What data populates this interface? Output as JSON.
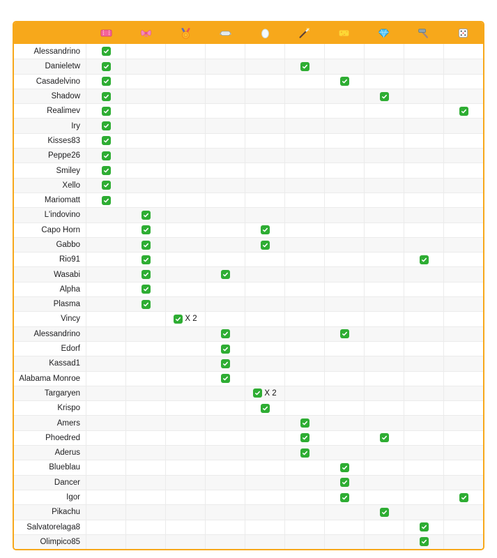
{
  "colors": {
    "header_orange": "#F7A81B",
    "border_orange": "#F7A81B",
    "check_green": "#2EAD33",
    "grid_line": "#EBEBEB",
    "row_alt": "#F7F7F7"
  },
  "chart_data": {
    "type": "table",
    "title": "",
    "check_symbol": "✅",
    "columns": [
      {
        "icon": "ticket-icon",
        "emoji": "🎟"
      },
      {
        "icon": "ribbon-icon",
        "emoji": "🎀"
      },
      {
        "icon": "medal-icon",
        "emoji": "🏅"
      },
      {
        "icon": "goggles-icon",
        "emoji": "🥽"
      },
      {
        "icon": "egg-icon",
        "emoji": "🥚"
      },
      {
        "icon": "magic-wand-icon",
        "emoji": "🪄"
      },
      {
        "icon": "sponge-icon",
        "emoji": "🧽"
      },
      {
        "icon": "gem-icon",
        "emoji": "💎"
      },
      {
        "icon": "hammer-icon",
        "emoji": "⚒️"
      },
      {
        "icon": "dice-icon",
        "emoji": "🎲"
      }
    ],
    "rows": [
      {
        "name": "Alessandrino",
        "checks": [
          0
        ]
      },
      {
        "name": "Danieletw",
        "checks": [
          0,
          5
        ]
      },
      {
        "name": "Casadelvino",
        "checks": [
          0,
          6
        ]
      },
      {
        "name": "Shadow",
        "checks": [
          0,
          7
        ]
      },
      {
        "name": "Realimev",
        "checks": [
          0,
          9
        ]
      },
      {
        "name": "Iry",
        "checks": [
          0
        ]
      },
      {
        "name": "Kisses83",
        "checks": [
          0
        ]
      },
      {
        "name": "Peppe26",
        "checks": [
          0
        ]
      },
      {
        "name": "Smiley",
        "checks": [
          0
        ]
      },
      {
        "name": "Xello",
        "checks": [
          0
        ]
      },
      {
        "name": "Mariomatt",
        "checks": [
          0
        ]
      },
      {
        "name": "L'indovino",
        "checks": [
          1
        ]
      },
      {
        "name": "Capo Horn",
        "checks": [
          1,
          4
        ]
      },
      {
        "name": "Gabbo",
        "checks": [
          1,
          4
        ]
      },
      {
        "name": "Rio91",
        "checks": [
          1,
          8
        ]
      },
      {
        "name": "Wasabi",
        "checks": [
          1,
          3
        ]
      },
      {
        "name": "Alpha",
        "checks": [
          1
        ]
      },
      {
        "name": "Plasma",
        "checks": [
          1
        ]
      },
      {
        "name": "Vincy",
        "checks": [
          2
        ],
        "multiplier": {
          "col": 2,
          "text": "X 2"
        }
      },
      {
        "name": "Alessandrino",
        "checks": [
          3,
          6
        ]
      },
      {
        "name": "Edorf",
        "checks": [
          3
        ]
      },
      {
        "name": "Kassad1",
        "checks": [
          3
        ]
      },
      {
        "name": "Alabama Monroe",
        "checks": [
          3
        ]
      },
      {
        "name": "Targaryen",
        "checks": [
          4
        ],
        "multiplier": {
          "col": 4,
          "text": "X 2"
        }
      },
      {
        "name": "Krispo",
        "checks": [
          4
        ]
      },
      {
        "name": "Amers",
        "checks": [
          5
        ]
      },
      {
        "name": "Phoedred",
        "checks": [
          5,
          7
        ]
      },
      {
        "name": "Aderus",
        "checks": [
          5
        ]
      },
      {
        "name": "Blueblau",
        "checks": [
          6
        ]
      },
      {
        "name": "Dancer",
        "checks": [
          6
        ]
      },
      {
        "name": "Igor",
        "checks": [
          6,
          9
        ]
      },
      {
        "name": "Pikachu",
        "checks": [
          7
        ]
      },
      {
        "name": "Salvatorelaga8",
        "checks": [
          8
        ]
      },
      {
        "name": "Olimpico85",
        "checks": [
          8
        ]
      }
    ]
  }
}
